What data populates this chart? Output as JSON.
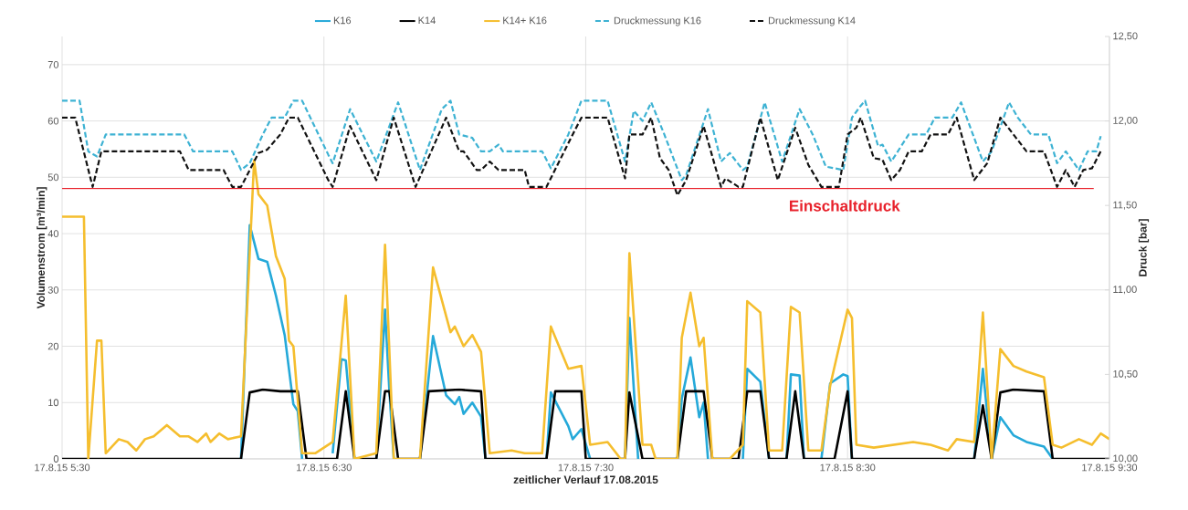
{
  "chart_data": {
    "type": "line",
    "xlabel": "zeitlicher Verlauf 17.08.2015",
    "ylabel": "Volumenstrom [m³/min]",
    "y2label": "Druck [bar]",
    "xlim": [
      "2015-08-17T05:30",
      "2015-08-17T09:30"
    ],
    "xticks": [
      {
        "value": "2015-08-17T05:30",
        "label": "17.8.15 5:30"
      },
      {
        "value": "2015-08-17T06:30",
        "label": "17.8.15 6:30"
      },
      {
        "value": "2015-08-17T07:30",
        "label": "17.8.15 7:30"
      },
      {
        "value": "2015-08-17T08:30",
        "label": "17.8.15 8:30"
      },
      {
        "value": "2015-08-17T09:30",
        "label": "17.8.15 9:30"
      }
    ],
    "ylim": [
      0,
      75
    ],
    "yticks": [
      0,
      10,
      20,
      30,
      40,
      50,
      60,
      70
    ],
    "y2lim": [
      10,
      12.5
    ],
    "y2ticks": [
      {
        "value": 10,
        "label": "10,00"
      },
      {
        "value": 10.5,
        "label": "10,50"
      },
      {
        "value": 11,
        "label": "11,00"
      },
      {
        "value": 11.5,
        "label": "11,50"
      },
      {
        "value": 12,
        "label": "12,00"
      },
      {
        "value": 12.5,
        "label": "12,50"
      }
    ],
    "grid": true,
    "legend": "top",
    "marker": "none",
    "ref_lines": [
      {
        "axis": "y2",
        "value": 11.6,
        "label": "Einschaltdruck",
        "color": "#e8202a"
      }
    ],
    "series": [
      {
        "name": "K16",
        "color": "#25a9d9",
        "line_style": "solid",
        "x": [
          "2015-08-17T06:11",
          "2015-08-17T06:13",
          "2015-08-17T06:15",
          "2015-08-17T06:17",
          "2015-08-17T06:19",
          "2015-08-17T06:21",
          "2015-08-17T06:23",
          "2015-08-17T06:24",
          "2015-08-17T06:25",
          "2015-08-17T06:29",
          "2015-08-17T06:32",
          "2015-08-17T06:34",
          "2015-08-17T06:35",
          "2015-08-17T06:37",
          "2015-08-17T06:40",
          "2015-08-17T06:42",
          "2015-08-17T06:44",
          "2015-08-17T06:45",
          "2015-08-17T06:46",
          "2015-08-17T06:49",
          "2015-08-17T06:52",
          "2015-08-17T06:55",
          "2015-08-17T06:58",
          "2015-08-17T07:00",
          "2015-08-17T07:01",
          "2015-08-17T07:02",
          "2015-08-17T07:04",
          "2015-08-17T07:06",
          "2015-08-17T07:07",
          "2015-08-17T07:15",
          "2015-08-17T07:21",
          "2015-08-17T07:22",
          "2015-08-17T07:26",
          "2015-08-17T07:27",
          "2015-08-17T07:29",
          "2015-08-17T07:31",
          "2015-08-17T07:36",
          "2015-08-17T07:39",
          "2015-08-17T07:40",
          "2015-08-17T07:42",
          "2015-08-17T07:47",
          "2015-08-17T07:51",
          "2015-08-17T07:52",
          "2015-08-17T07:54",
          "2015-08-17T07:56",
          "2015-08-17T07:57",
          "2015-08-17T07:58",
          "2015-08-17T08:02",
          "2015-08-17T08:06",
          "2015-08-17T08:07",
          "2015-08-17T08:10",
          "2015-08-17T08:12",
          "2015-08-17T08:14",
          "2015-08-17T08:16",
          "2015-08-17T08:17",
          "2015-08-17T08:19",
          "2015-08-17T08:20",
          "2015-08-17T08:23",
          "2015-08-17T08:24",
          "2015-08-17T08:26",
          "2015-08-17T08:29",
          "2015-08-17T08:30",
          "2015-08-17T08:31",
          "2015-08-17T08:45",
          "2015-08-17T08:59",
          "2015-08-17T09:01",
          "2015-08-17T09:03",
          "2015-08-17T09:05",
          "2015-08-17T09:08",
          "2015-08-17T09:11",
          "2015-08-17T09:15",
          "2015-08-17T09:17"
        ],
        "values": [
          0,
          41.5,
          35.5,
          35,
          29,
          22,
          9.7,
          8.5,
          0,
          null,
          1,
          17.7,
          17.5,
          0,
          null,
          0,
          26.5,
          12,
          0,
          null,
          0,
          21.8,
          11.3,
          9.7,
          11,
          8,
          10,
          7.5,
          0,
          null,
          0,
          11.8,
          5.8,
          3.5,
          5.3,
          0,
          null,
          0,
          25,
          0,
          null,
          0,
          10.7,
          18,
          7.4,
          10,
          0,
          null,
          0,
          16,
          13.7,
          0,
          null,
          0,
          15,
          14.8,
          0,
          null,
          0,
          13.4,
          15,
          14.7,
          0,
          null,
          0,
          16,
          0,
          7.4,
          4.2,
          3,
          2.2,
          0
        ]
      },
      {
        "name": "K14",
        "color": "#000000",
        "line_style": "solid",
        "x": [
          "2015-08-17T05:30",
          "2015-08-17T06:11",
          "2015-08-17T06:13",
          "2015-08-17T06:16",
          "2015-08-17T06:20",
          "2015-08-17T06:24",
          "2015-08-17T06:26",
          "2015-08-17T06:33",
          "2015-08-17T06:35",
          "2015-08-17T06:37",
          "2015-08-17T06:42",
          "2015-08-17T06:44",
          "2015-08-17T06:45",
          "2015-08-17T06:47",
          "2015-08-17T06:52",
          "2015-08-17T06:54",
          "2015-08-17T07:01",
          "2015-08-17T07:06",
          "2015-08-17T07:07",
          "2015-08-17T07:21",
          "2015-08-17T07:23",
          "2015-08-17T07:29",
          "2015-08-17T07:30",
          "2015-08-17T07:39",
          "2015-08-17T07:40",
          "2015-08-17T07:43",
          "2015-08-17T07:51",
          "2015-08-17T07:53",
          "2015-08-17T07:57",
          "2015-08-17T07:59",
          "2015-08-17T08:05",
          "2015-08-17T08:07",
          "2015-08-17T08:10",
          "2015-08-17T08:12",
          "2015-08-17T08:16",
          "2015-08-17T08:18",
          "2015-08-17T08:20",
          "2015-08-17T08:27",
          "2015-08-17T08:30",
          "2015-08-17T08:31",
          "2015-08-17T08:59",
          "2015-08-17T09:01",
          "2015-08-17T09:03",
          "2015-08-17T09:05",
          "2015-08-17T09:08",
          "2015-08-17T09:15",
          "2015-08-17T09:17",
          "2015-08-17T09:30"
        ],
        "values": [
          0,
          0,
          11.8,
          12.3,
          12,
          12,
          0,
          0,
          12,
          0,
          0,
          12,
          12,
          0,
          0,
          12,
          12.3,
          12,
          0,
          0,
          12,
          12,
          0,
          0,
          11.8,
          0,
          0,
          12,
          12,
          0,
          0,
          12,
          12,
          0,
          0,
          12,
          0,
          0,
          12,
          0,
          0,
          9.5,
          0,
          11.8,
          12.3,
          12,
          0,
          0
        ]
      },
      {
        "name": "K14+ K16",
        "color": "#f5be2e",
        "line_style": "solid",
        "x": [
          "2015-08-17T05:30",
          "2015-08-17T05:35",
          "2015-08-17T05:36",
          "2015-08-17T05:38",
          "2015-08-17T05:39",
          "2015-08-17T05:40",
          "2015-08-17T05:43",
          "2015-08-17T05:45",
          "2015-08-17T05:47",
          "2015-08-17T05:49",
          "2015-08-17T05:51",
          "2015-08-17T05:54",
          "2015-08-17T05:57",
          "2015-08-17T05:59",
          "2015-08-17T06:01",
          "2015-08-17T06:03",
          "2015-08-17T06:04",
          "2015-08-17T06:06",
          "2015-08-17T06:08",
          "2015-08-17T06:11",
          "2015-08-17T06:14",
          "2015-08-17T06:15",
          "2015-08-17T06:17",
          "2015-08-17T06:19",
          "2015-08-17T06:21",
          "2015-08-17T06:22",
          "2015-08-17T06:23",
          "2015-08-17T06:25",
          "2015-08-17T06:28",
          "2015-08-17T06:30",
          "2015-08-17T06:32",
          "2015-08-17T06:35",
          "2015-08-17T06:37",
          "2015-08-17T06:42",
          "2015-08-17T06:44",
          "2015-08-17T06:46",
          "2015-08-17T06:52",
          "2015-08-17T06:55",
          "2015-08-17T06:59",
          "2015-08-17T07:00",
          "2015-08-17T07:02",
          "2015-08-17T07:04",
          "2015-08-17T07:06",
          "2015-08-17T07:08",
          "2015-08-17T07:13",
          "2015-08-17T07:16",
          "2015-08-17T07:20",
          "2015-08-17T07:22",
          "2015-08-17T07:26",
          "2015-08-17T07:29",
          "2015-08-17T07:31",
          "2015-08-17T07:35",
          "2015-08-17T07:38",
          "2015-08-17T07:39",
          "2015-08-17T07:40",
          "2015-08-17T07:43",
          "2015-08-17T07:45",
          "2015-08-17T07:46",
          "2015-08-17T07:51",
          "2015-08-17T07:52",
          "2015-08-17T07:54",
          "2015-08-17T07:56",
          "2015-08-17T07:57",
          "2015-08-17T07:59",
          "2015-08-17T08:03",
          "2015-08-17T08:06",
          "2015-08-17T08:07",
          "2015-08-17T08:10",
          "2015-08-17T08:12",
          "2015-08-17T08:15",
          "2015-08-17T08:17",
          "2015-08-17T08:19",
          "2015-08-17T08:21",
          "2015-08-17T08:24",
          "2015-08-17T08:26",
          "2015-08-17T08:30",
          "2015-08-17T08:31",
          "2015-08-17T08:32",
          "2015-08-17T08:36",
          "2015-08-17T08:45",
          "2015-08-17T08:49",
          "2015-08-17T08:53",
          "2015-08-17T08:55",
          "2015-08-17T08:59",
          "2015-08-17T09:01",
          "2015-08-17T09:03",
          "2015-08-17T09:05",
          "2015-08-17T09:08",
          "2015-08-17T09:11",
          "2015-08-17T09:15",
          "2015-08-17T09:17",
          "2015-08-17T09:19",
          "2015-08-17T09:23",
          "2015-08-17T09:26",
          "2015-08-17T09:28",
          "2015-08-17T09:30"
        ],
        "values": [
          43,
          43,
          0,
          21,
          21,
          1,
          3.5,
          3,
          1.5,
          3.5,
          4,
          6,
          4,
          4,
          3,
          4.5,
          3,
          4.5,
          3.5,
          4,
          53,
          47,
          45,
          36,
          32,
          21,
          20,
          1,
          1,
          2,
          3,
          29,
          0,
          1,
          38,
          0,
          0,
          34,
          22.5,
          23.5,
          20,
          22,
          19,
          1,
          1.5,
          1,
          1,
          23.5,
          16,
          16.5,
          2.5,
          3,
          0,
          0,
          36.5,
          2.5,
          2.5,
          0,
          0,
          21.5,
          29.5,
          20,
          21.5,
          0,
          0,
          2.5,
          28,
          26,
          1.5,
          1.5,
          27,
          26,
          1.5,
          1.5,
          13,
          26.5,
          25,
          2.5,
          2,
          3,
          2.5,
          1.5,
          3.5,
          3,
          26,
          0,
          19.5,
          16.5,
          15.5,
          14.5,
          2.5,
          2,
          3.5,
          2.5,
          4.5,
          3.5
        ]
      },
      {
        "name": "Druckmessung K16",
        "color": "#3db2d3",
        "line_style": "dashed",
        "axis": "y2",
        "x": [
          "2015-08-17T05:30",
          "2015-08-17T05:34",
          "2015-08-17T05:36",
          "2015-08-17T05:38",
          "2015-08-17T05:40",
          "2015-08-17T05:58",
          "2015-08-17T06:00",
          "2015-08-17T06:09",
          "2015-08-17T06:11",
          "2015-08-17T06:13",
          "2015-08-17T06:16",
          "2015-08-17T06:18",
          "2015-08-17T06:21",
          "2015-08-17T06:23",
          "2015-08-17T06:25",
          "2015-08-17T06:31",
          "2015-08-17T06:32",
          "2015-08-17T06:36",
          "2015-08-17T06:42",
          "2015-08-17T06:47",
          "2015-08-17T06:52",
          "2015-08-17T06:57",
          "2015-08-17T06:59",
          "2015-08-17T07:01",
          "2015-08-17T07:04",
          "2015-08-17T07:06",
          "2015-08-17T07:08",
          "2015-08-17T07:10",
          "2015-08-17T07:11",
          "2015-08-17T07:20",
          "2015-08-17T07:22",
          "2015-08-17T07:24",
          "2015-08-17T07:26",
          "2015-08-17T07:29",
          "2015-08-17T07:35",
          "2015-08-17T07:39",
          "2015-08-17T07:41",
          "2015-08-17T07:43",
          "2015-08-17T07:45",
          "2015-08-17T07:48",
          "2015-08-17T07:52",
          "2015-08-17T07:53",
          "2015-08-17T07:58",
          "2015-08-17T08:01",
          "2015-08-17T08:03",
          "2015-08-17T08:06",
          "2015-08-17T08:07",
          "2015-08-17T08:11",
          "2015-08-17T08:15",
          "2015-08-17T08:19",
          "2015-08-17T08:22",
          "2015-08-17T08:25",
          "2015-08-17T08:29",
          "2015-08-17T08:31",
          "2015-08-17T08:33",
          "2015-08-17T08:34",
          "2015-08-17T08:37",
          "2015-08-17T08:38",
          "2015-08-17T08:40",
          "2015-08-17T08:44",
          "2015-08-17T08:48",
          "2015-08-17T08:50",
          "2015-08-17T08:54",
          "2015-08-17T08:56",
          "2015-08-17T09:01",
          "2015-08-17T09:03",
          "2015-08-17T09:07",
          "2015-08-17T09:09",
          "2015-08-17T09:12",
          "2015-08-17T09:16",
          "2015-08-17T09:18",
          "2015-08-17T09:20",
          "2015-08-17T09:23",
          "2015-08-17T09:25",
          "2015-08-17T09:27",
          "2015-08-17T09:28"
        ],
        "values": [
          12.12,
          12.12,
          11.82,
          11.79,
          11.92,
          11.92,
          11.82,
          11.82,
          11.71,
          11.75,
          11.92,
          12.02,
          12.02,
          12.12,
          12.12,
          11.8,
          11.75,
          12.07,
          11.76,
          12.11,
          11.71,
          12.07,
          12.12,
          11.92,
          11.9,
          11.82,
          11.82,
          11.86,
          11.82,
          11.82,
          11.72,
          11.82,
          11.92,
          12.12,
          12.12,
          11.76,
          12.06,
          12.0,
          12.11,
          11.92,
          11.65,
          11.68,
          12.07,
          11.76,
          11.81,
          11.71,
          11.73,
          12.11,
          11.76,
          12.07,
          11.92,
          11.73,
          11.71,
          12.02,
          12.09,
          12.12,
          11.85,
          11.86,
          11.76,
          11.92,
          11.92,
          12.02,
          12.02,
          12.11,
          11.76,
          11.82,
          12.11,
          12.02,
          11.92,
          11.92,
          11.75,
          11.82,
          11.71,
          11.82,
          11.82,
          11.91
        ]
      },
      {
        "name": "Druckmessung K14",
        "color": "#111111",
        "line_style": "dashed",
        "axis": "y2",
        "x": [
          "2015-08-17T05:30",
          "2015-08-17T05:33",
          "2015-08-17T05:37",
          "2015-08-17T05:39",
          "2015-08-17T05:57",
          "2015-08-17T05:59",
          "2015-08-17T06:07",
          "2015-08-17T06:09",
          "2015-08-17T06:11",
          "2015-08-17T06:15",
          "2015-08-17T06:17",
          "2015-08-17T06:20",
          "2015-08-17T06:22",
          "2015-08-17T06:24",
          "2015-08-17T06:31",
          "2015-08-17T06:32",
          "2015-08-17T06:36",
          "2015-08-17T06:42",
          "2015-08-17T06:46",
          "2015-08-17T06:51",
          "2015-08-17T06:58",
          "2015-08-17T07:01",
          "2015-08-17T07:02",
          "2015-08-17T07:05",
          "2015-08-17T07:06",
          "2015-08-17T07:08",
          "2015-08-17T07:10",
          "2015-08-17T07:16",
          "2015-08-17T07:17",
          "2015-08-17T07:21",
          "2015-08-17T07:27",
          "2015-08-17T07:29",
          "2015-08-17T07:35",
          "2015-08-17T07:39",
          "2015-08-17T07:40",
          "2015-08-17T07:43",
          "2015-08-17T07:45",
          "2015-08-17T07:47",
          "2015-08-17T07:49",
          "2015-08-17T07:51",
          "2015-08-17T07:53",
          "2015-08-17T07:57",
          "2015-08-17T08:01",
          "2015-08-17T08:02",
          "2015-08-17T08:05",
          "2015-08-17T08:06",
          "2015-08-17T08:10",
          "2015-08-17T08:14",
          "2015-08-17T08:18",
          "2015-08-17T08:21",
          "2015-08-17T08:24",
          "2015-08-17T08:28",
          "2015-08-17T08:30",
          "2015-08-17T08:32",
          "2015-08-17T08:33",
          "2015-08-17T08:36",
          "2015-08-17T08:38",
          "2015-08-17T08:40",
          "2015-08-17T08:42",
          "2015-08-17T08:44",
          "2015-08-17T08:47",
          "2015-08-17T08:49",
          "2015-08-17T08:53",
          "2015-08-17T08:55",
          "2015-08-17T08:59",
          "2015-08-17T09:02",
          "2015-08-17T09:05",
          "2015-08-17T09:08",
          "2015-08-17T09:11",
          "2015-08-17T09:15",
          "2015-08-17T09:18",
          "2015-08-17T09:20",
          "2015-08-17T09:22",
          "2015-08-17T09:24",
          "2015-08-17T09:26",
          "2015-08-17T09:28"
        ],
        "values": [
          12.02,
          12.02,
          11.61,
          11.82,
          11.82,
          11.71,
          11.71,
          11.61,
          11.61,
          11.81,
          11.83,
          11.92,
          12.02,
          12.02,
          11.65,
          11.61,
          11.97,
          11.65,
          12.02,
          11.61,
          12.02,
          11.82,
          11.82,
          11.71,
          11.71,
          11.76,
          11.71,
          11.71,
          11.61,
          11.61,
          11.92,
          12.02,
          12.02,
          11.66,
          11.92,
          11.92,
          12.02,
          11.78,
          11.71,
          11.56,
          11.65,
          11.97,
          11.61,
          11.66,
          11.61,
          11.61,
          12.02,
          11.65,
          11.96,
          11.74,
          11.61,
          11.61,
          11.92,
          11.96,
          12.02,
          11.78,
          11.77,
          11.65,
          11.71,
          11.82,
          11.82,
          11.92,
          11.92,
          12.02,
          11.65,
          11.75,
          12.02,
          11.92,
          11.82,
          11.82,
          11.61,
          11.71,
          11.61,
          11.71,
          11.72,
          11.82
        ]
      }
    ]
  }
}
